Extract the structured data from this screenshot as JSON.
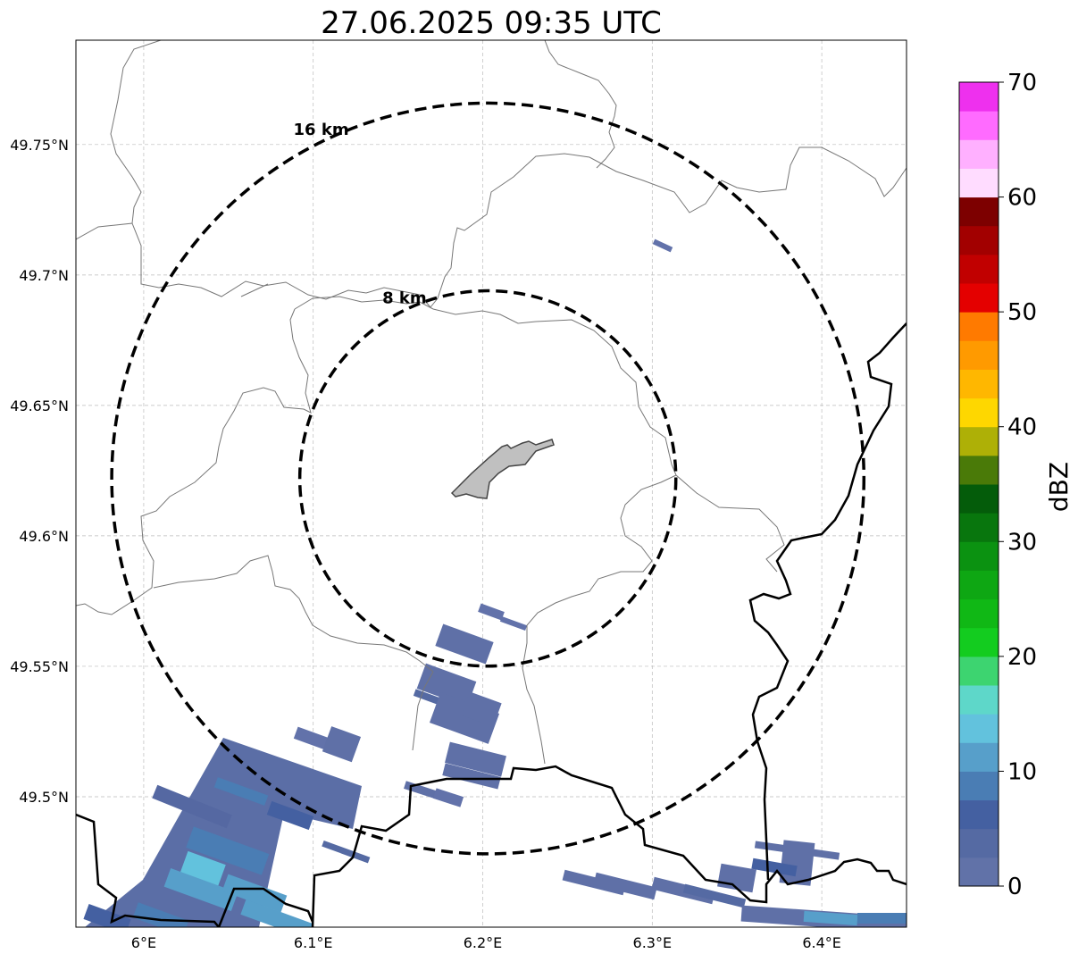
{
  "title": "27.06.2025 09:35 UTC",
  "map": {
    "lon_range": [
      5.96,
      6.45
    ],
    "lat_range": [
      49.45,
      49.79
    ],
    "x_ticks": [
      {
        "value": 6.0,
        "label": "6°E"
      },
      {
        "value": 6.1,
        "label": "6.1°E"
      },
      {
        "value": 6.2,
        "label": "6.2°E"
      },
      {
        "value": 6.3,
        "label": "6.3°E"
      },
      {
        "value": 6.4,
        "label": "6.4°E"
      }
    ],
    "y_ticks": [
      {
        "value": 49.75,
        "label": "49.75°N"
      },
      {
        "value": 49.7,
        "label": "49.7°N"
      },
      {
        "value": 49.65,
        "label": "49.65°N"
      },
      {
        "value": 49.6,
        "label": "49.6°N"
      },
      {
        "value": 49.55,
        "label": "49.55°N"
      },
      {
        "value": 49.5,
        "label": "49.5°N"
      }
    ],
    "grid": true,
    "radar_center": {
      "lon": 6.203,
      "lat": 49.622
    },
    "range_rings": [
      {
        "radius_km": 8,
        "label": "8 km"
      },
      {
        "radius_km": 16,
        "label": "16 km"
      }
    ]
  },
  "colorbar": {
    "label": "dBZ",
    "min": 0,
    "max": 70,
    "ticks": [
      0,
      10,
      20,
      30,
      40,
      50,
      60,
      70
    ],
    "colors": [
      "#6172a8",
      "#556aa3",
      "#4460a1",
      "#4a7db4",
      "#579fca",
      "#62c2dd",
      "#5ed7c9",
      "#3dd470",
      "#13cc1f",
      "#10b815",
      "#0ea713",
      "#0b9211",
      "#08760d",
      "#045c0a",
      "#4a7a08",
      "#aeb006",
      "#fed700",
      "#ffb700",
      "#ff9a00",
      "#ff7a00",
      "#e40000",
      "#c10000",
      "#a20000",
      "#7d0000",
      "#ffdcff",
      "#ffb0ff",
      "#ff6bff",
      "#ee30ee"
    ]
  },
  "echoes": [
    {
      "lon": 6.2,
      "lat": 49.542,
      "w": 0.02,
      "h": 0.012,
      "dbz": 3
    },
    {
      "lon": 6.19,
      "lat": 49.558,
      "w": 0.03,
      "h": 0.01,
      "dbz": 1
    },
    {
      "lon": 6.228,
      "lat": 49.57,
      "w": 0.03,
      "h": 0.005,
      "dbz": 2
    },
    {
      "lon": 6.195,
      "lat": 49.515,
      "w": 0.03,
      "h": 0.01,
      "dbz": 2
    },
    {
      "lon": 6.185,
      "lat": 49.49,
      "w": 0.035,
      "h": 0.006,
      "dbz": 1
    },
    {
      "lon": 6.078,
      "lat": 49.49,
      "w": 0.05,
      "h": 0.012,
      "dbz": 3
    },
    {
      "lon": 6.06,
      "lat": 49.47,
      "w": 0.05,
      "h": 0.012,
      "dbz": 4
    },
    {
      "lon": 6.03,
      "lat": 49.46,
      "w": 0.04,
      "h": 0.01,
      "dbz": 13
    },
    {
      "lon": 6.305,
      "lat": 49.71,
      "w": 0.012,
      "h": 0.004,
      "dbz": 1
    },
    {
      "lon": 6.28,
      "lat": 49.462,
      "w": 0.05,
      "h": 0.005,
      "dbz": 1
    },
    {
      "lon": 6.4,
      "lat": 49.452,
      "w": 0.06,
      "h": 0.006,
      "dbz": 1
    }
  ]
}
